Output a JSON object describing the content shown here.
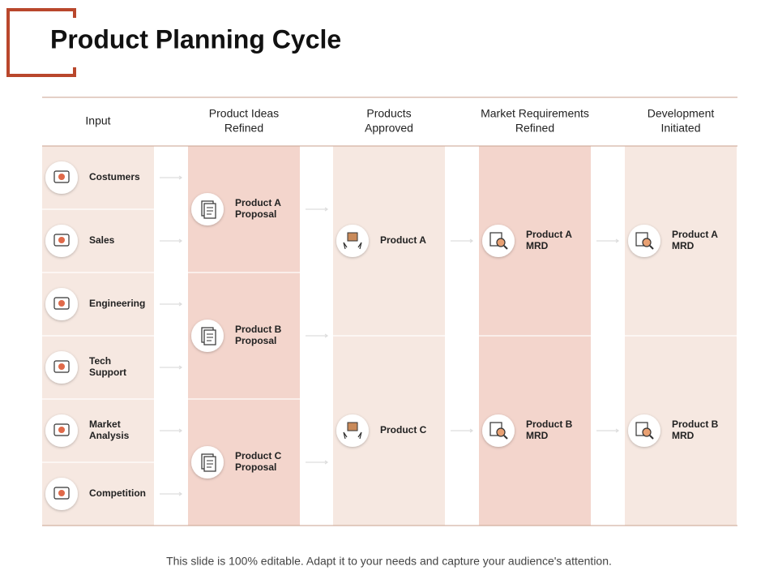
{
  "header": {
    "title": "Product Planning Cycle"
  },
  "columns": [
    {
      "heading": [
        "Input"
      ],
      "items": [
        [
          "Costumers"
        ],
        [
          "Sales"
        ],
        [
          "Engineering"
        ],
        [
          "Tech",
          "Support"
        ],
        [
          "Market",
          "Analysis"
        ],
        [
          "Competition"
        ]
      ]
    },
    {
      "heading": [
        "Product Ideas",
        "Refined"
      ],
      "items": [
        [
          "Product A",
          "Proposal"
        ],
        [
          "Product B",
          "Proposal"
        ],
        [
          "Product C",
          "Proposal"
        ]
      ]
    },
    {
      "heading": [
        "Products",
        "Approved"
      ],
      "items": [
        [
          "Product A"
        ],
        [
          "Product C"
        ]
      ]
    },
    {
      "heading": [
        "Market Requirements",
        "Refined"
      ],
      "items": [
        [
          "Product A",
          "MRD"
        ],
        [
          "Product B",
          "MRD"
        ]
      ]
    },
    {
      "heading": [
        "Development",
        "Initiated"
      ],
      "items": [
        [
          "Product A",
          "MRD"
        ],
        [
          "Product B",
          "MRD"
        ]
      ]
    }
  ],
  "footer": {
    "note": "This slide is 100% editable. Adapt it to your needs and capture your audience's attention."
  }
}
